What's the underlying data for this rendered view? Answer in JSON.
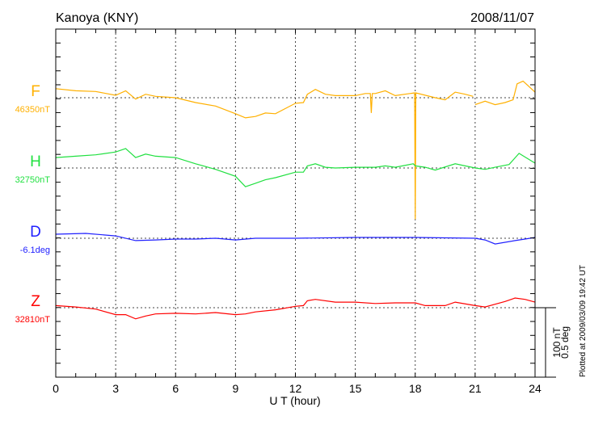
{
  "chart_data": {
    "type": "line",
    "title": "Kanoya (KNY)",
    "date": "2008/11/07",
    "xlabel": "U T (hour)",
    "xlim": [
      0,
      24
    ],
    "xticks": [
      "0",
      "3",
      "6",
      "9",
      "12",
      "15",
      "18",
      "21",
      "24"
    ],
    "grid": true,
    "scale_bar": {
      "label_nT": "100 nT",
      "label_deg": "0.5 deg"
    },
    "footnote": "Plotted at 2009/03/09 19:42 UT",
    "series": [
      {
        "name": "F",
        "baseline_label": "46350nT",
        "color": "#ffb000",
        "unit": "nT",
        "points": [
          [
            0,
            13
          ],
          [
            1,
            10
          ],
          [
            2,
            9
          ],
          [
            3,
            3.5
          ],
          [
            3.5,
            10
          ],
          [
            4,
            -2
          ],
          [
            4.5,
            5
          ],
          [
            5,
            2
          ],
          [
            6,
            0
          ],
          [
            7,
            -7
          ],
          [
            8,
            -12
          ],
          [
            9,
            -23
          ],
          [
            9.5,
            -29
          ],
          [
            10,
            -27
          ],
          [
            10.5,
            -22
          ],
          [
            11,
            -23
          ],
          [
            12,
            -8
          ],
          [
            12.4,
            -7
          ],
          [
            12.6,
            5
          ],
          [
            13,
            12
          ],
          [
            13.5,
            5
          ],
          [
            14,
            3
          ],
          [
            15,
            3
          ],
          [
            15.5,
            6
          ],
          [
            15.75,
            6
          ],
          [
            15.8,
            -22
          ],
          [
            15.85,
            6
          ],
          [
            16,
            6
          ],
          [
            16.5,
            10
          ],
          [
            17,
            3
          ],
          [
            17.97,
            7
          ],
          [
            18,
            -175
          ],
          [
            18.03,
            7
          ],
          [
            19,
            0
          ],
          [
            19.5,
            -3
          ],
          [
            20,
            8
          ],
          [
            20.5,
            5
          ],
          [
            20.9,
            2
          ],
          null,
          [
            21,
            -10
          ],
          [
            21.5,
            -5
          ],
          [
            22,
            -10
          ],
          [
            22.5,
            -7
          ],
          [
            22.9,
            -3
          ],
          [
            23.1,
            20
          ],
          [
            23.4,
            24
          ],
          [
            24,
            8
          ]
        ]
      },
      {
        "name": "H",
        "baseline_label": "32750nT",
        "color": "#20e040",
        "unit": "nT",
        "points": [
          [
            0,
            15
          ],
          [
            1,
            17
          ],
          [
            2,
            19
          ],
          [
            3,
            23
          ],
          [
            3.5,
            28
          ],
          [
            4,
            15
          ],
          [
            4.5,
            20
          ],
          [
            5,
            17
          ],
          [
            6,
            15
          ],
          [
            7,
            6
          ],
          [
            8,
            -2
          ],
          [
            9,
            -12
          ],
          [
            9.5,
            -27
          ],
          [
            10,
            -22
          ],
          [
            10.5,
            -17
          ],
          [
            11,
            -14
          ],
          [
            12,
            -6
          ],
          [
            12.4,
            -6
          ],
          [
            12.6,
            3
          ],
          [
            13,
            6
          ],
          [
            13.5,
            1
          ],
          [
            14,
            0
          ],
          [
            15,
            1
          ],
          [
            16,
            1
          ],
          [
            16.5,
            3
          ],
          [
            17,
            1
          ],
          [
            17.9,
            6
          ],
          [
            18,
            3
          ],
          [
            18.5,
            1
          ],
          [
            19,
            -3
          ],
          [
            20,
            6
          ],
          [
            21,
            0
          ],
          [
            21.5,
            -2
          ],
          [
            22,
            1
          ],
          [
            22.7,
            5
          ],
          [
            23.2,
            21
          ],
          [
            24,
            7
          ]
        ]
      },
      {
        "name": "D",
        "baseline_label": "-6.1deg",
        "color": "#2020ff",
        "unit": "deg",
        "points": [
          [
            0,
            0.029
          ],
          [
            1.5,
            0.035
          ],
          [
            3,
            0.017
          ],
          [
            4,
            -0.017
          ],
          [
            5,
            -0.012
          ],
          [
            6,
            -0.006
          ],
          [
            7,
            -0.006
          ],
          [
            8,
            0
          ],
          [
            9,
            -0.012
          ],
          [
            10,
            0
          ],
          [
            12,
            0
          ],
          [
            15,
            0.006
          ],
          [
            18,
            0.006
          ],
          [
            21,
            0
          ],
          [
            21.5,
            -0.012
          ],
          [
            22,
            -0.041
          ],
          [
            23,
            -0.017
          ],
          [
            23.5,
            -0.006
          ],
          [
            24,
            0.006
          ]
        ]
      },
      {
        "name": "Z",
        "baseline_label": "32810nT",
        "color": "#ff0000",
        "unit": "nT",
        "points": [
          [
            0,
            3
          ],
          [
            1,
            1
          ],
          [
            2,
            -2
          ],
          [
            3,
            -10
          ],
          [
            3.5,
            -10
          ],
          [
            4,
            -16
          ],
          [
            4.5,
            -12
          ],
          [
            5,
            -9
          ],
          [
            6,
            -8
          ],
          [
            7,
            -9
          ],
          [
            8,
            -7
          ],
          [
            9,
            -10
          ],
          [
            9.5,
            -9
          ],
          [
            10,
            -6
          ],
          [
            11,
            -3
          ],
          [
            12,
            2
          ],
          [
            12.4,
            3
          ],
          [
            12.6,
            10
          ],
          [
            13,
            12
          ],
          [
            14,
            8
          ],
          [
            15,
            8
          ],
          [
            16,
            6
          ],
          [
            17,
            7
          ],
          [
            18,
            7
          ],
          [
            18.5,
            3
          ],
          [
            19.5,
            3
          ],
          [
            20,
            8
          ],
          [
            21,
            3
          ],
          [
            21.5,
            1
          ],
          [
            22,
            5
          ],
          [
            22.5,
            9
          ],
          [
            23,
            14
          ],
          [
            23.5,
            12
          ],
          [
            24,
            8
          ]
        ]
      }
    ]
  }
}
